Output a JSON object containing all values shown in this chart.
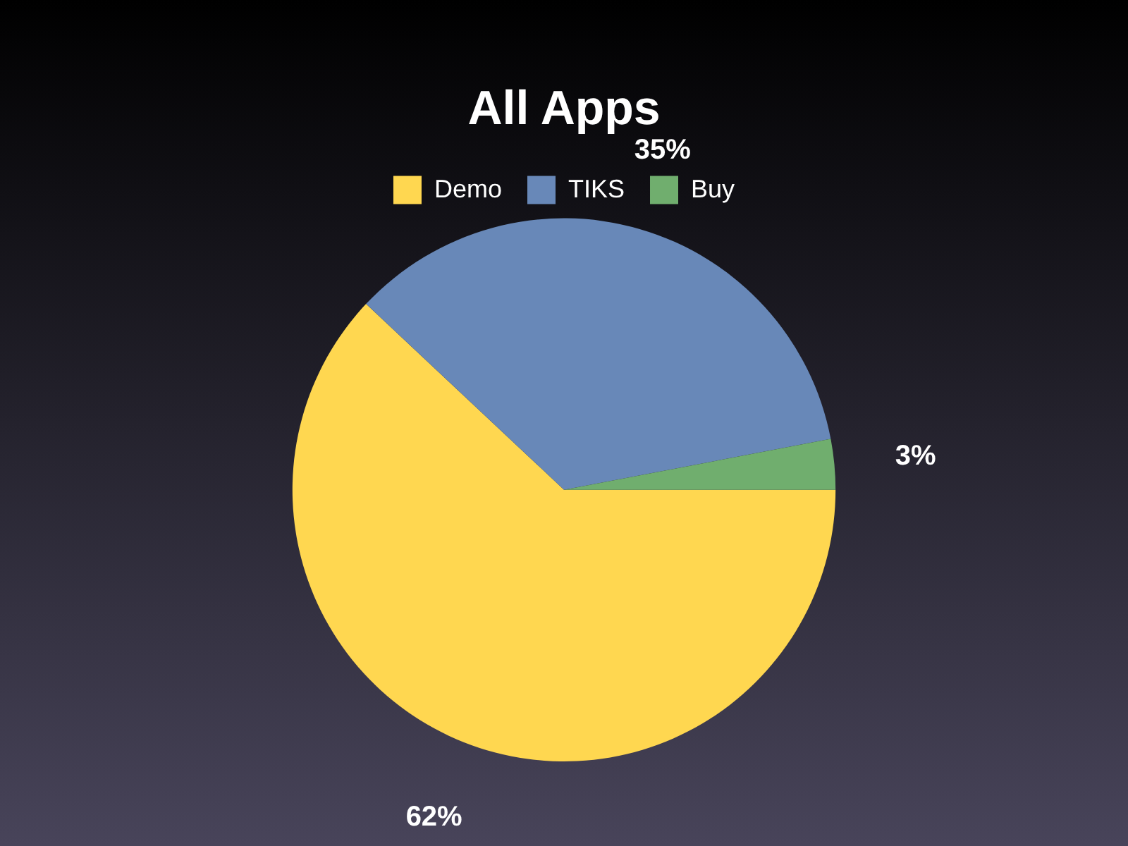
{
  "chart_data": {
    "type": "pie",
    "title": "All Apps",
    "categories": [
      "Demo",
      "TIKS",
      "Buy"
    ],
    "values": [
      62,
      35,
      3
    ],
    "colors": [
      "#ffd750",
      "#6888b8",
      "#70ae6e"
    ],
    "value_labels": [
      "62%",
      "35%",
      "3%"
    ],
    "legend": "top"
  }
}
